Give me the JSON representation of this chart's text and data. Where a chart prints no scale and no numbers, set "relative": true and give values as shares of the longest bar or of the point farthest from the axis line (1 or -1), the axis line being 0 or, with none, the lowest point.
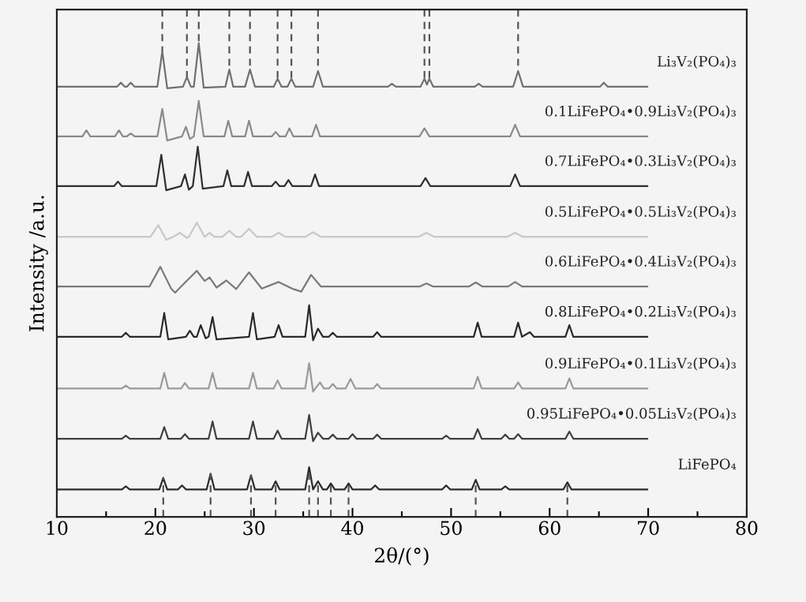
{
  "chart_data": {
    "type": "line",
    "relative": true,
    "xlabel": "2θ/(°)",
    "ylabel": "Intensity /a.u.",
    "xlim": [
      10,
      80
    ],
    "xticks": [
      10,
      20,
      30,
      40,
      50,
      60,
      70,
      80
    ],
    "grid": false,
    "legend": false,
    "marker": "none",
    "line_style": "solid",
    "series": [
      {
        "name": "Li₃V₂(PO₄)₃",
        "color": "#707070",
        "x": [
          10,
          16.1,
          16.5,
          16.9,
          17.1,
          17.5,
          17.9,
          20.2,
          20.7,
          21.2,
          22.8,
          23.2,
          23.6,
          23.9,
          24.4,
          24.9,
          27.1,
          27.5,
          27.9,
          29.1,
          29.6,
          30.1,
          32.0,
          32.4,
          32.8,
          33.4,
          33.8,
          34.2,
          36.0,
          36.5,
          37.0,
          43.6,
          44.0,
          44.4,
          46.9,
          47.3,
          47.55,
          47.8,
          48.2,
          52.4,
          52.8,
          53.2,
          56.3,
          56.8,
          57.3,
          65.1,
          65.5,
          65.9,
          70
        ],
        "values": [
          0.848,
          0.848,
          0.856,
          0.848,
          0.848,
          0.856,
          0.848,
          0.848,
          0.918,
          0.845,
          0.848,
          0.867,
          0.848,
          0.848,
          0.934,
          0.846,
          0.848,
          0.882,
          0.848,
          0.848,
          0.882,
          0.848,
          0.848,
          0.864,
          0.848,
          0.848,
          0.864,
          0.848,
          0.848,
          0.879,
          0.848,
          0.848,
          0.854,
          0.848,
          0.848,
          0.864,
          0.852,
          0.864,
          0.848,
          0.848,
          0.854,
          0.848,
          0.848,
          0.879,
          0.848,
          0.848,
          0.856,
          0.848,
          0.848
        ]
      },
      {
        "name": "0.1LiFePO₄•0.9Li₃V₂(PO₄)₃",
        "color": "#8a8a8a",
        "x": [
          10,
          12.6,
          13.0,
          13.4,
          15.9,
          16.3,
          16.7,
          17.1,
          17.5,
          17.9,
          20.2,
          20.7,
          21.2,
          22.7,
          23.1,
          23.5,
          23.9,
          24.4,
          24.9,
          27.0,
          27.4,
          27.8,
          29.1,
          29.5,
          29.9,
          31.8,
          32.2,
          32.6,
          33.2,
          33.6,
          34.0,
          35.9,
          36.3,
          36.7,
          46.8,
          47.3,
          47.8,
          56.0,
          56.5,
          57.0,
          70
        ],
        "values": [
          0.75,
          0.75,
          0.762,
          0.75,
          0.75,
          0.762,
          0.75,
          0.75,
          0.756,
          0.75,
          0.75,
          0.804,
          0.742,
          0.75,
          0.769,
          0.745,
          0.75,
          0.82,
          0.75,
          0.75,
          0.781,
          0.75,
          0.75,
          0.781,
          0.75,
          0.75,
          0.759,
          0.75,
          0.75,
          0.766,
          0.75,
          0.75,
          0.773,
          0.75,
          0.75,
          0.766,
          0.75,
          0.75,
          0.773,
          0.75,
          0.75
        ]
      },
      {
        "name": "0.7LiFePO₄•0.3Li₃V₂(PO₄)₃",
        "color": "#303030",
        "x": [
          10,
          15.8,
          16.2,
          16.6,
          20.1,
          20.6,
          21.1,
          22.6,
          23.0,
          23.4,
          23.8,
          24.3,
          24.8,
          26.9,
          27.3,
          27.7,
          29.0,
          29.4,
          29.8,
          31.8,
          32.2,
          32.6,
          33.1,
          33.5,
          33.9,
          35.8,
          36.2,
          36.6,
          46.9,
          47.4,
          47.9,
          56.0,
          56.5,
          57.0,
          70
        ],
        "values": [
          0.652,
          0.652,
          0.661,
          0.652,
          0.652,
          0.714,
          0.644,
          0.652,
          0.675,
          0.645,
          0.652,
          0.73,
          0.647,
          0.652,
          0.683,
          0.652,
          0.652,
          0.68,
          0.652,
          0.652,
          0.661,
          0.652,
          0.652,
          0.664,
          0.652,
          0.652,
          0.675,
          0.652,
          0.652,
          0.668,
          0.652,
          0.652,
          0.675,
          0.652,
          0.652
        ]
      },
      {
        "name": "0.5LiFePO₄•0.5Li₃V₂(PO₄)₃",
        "color": "#c8c8c8",
        "x": [
          10,
          19.5,
          20.3,
          21.1,
          21.8,
          22.5,
          23.2,
          23.4,
          24.2,
          25.0,
          25.5,
          26.0,
          26.8,
          27.5,
          28.2,
          28.7,
          29.5,
          30.3,
          31.8,
          32.5,
          33.2,
          35.2,
          36.0,
          36.8,
          46.7,
          47.5,
          48.3,
          55.7,
          56.5,
          57.3,
          70
        ],
        "values": [
          0.552,
          0.552,
          0.575,
          0.546,
          0.552,
          0.56,
          0.55,
          0.552,
          0.58,
          0.552,
          0.56,
          0.552,
          0.552,
          0.564,
          0.552,
          0.552,
          0.568,
          0.552,
          0.552,
          0.56,
          0.552,
          0.552,
          0.561,
          0.552,
          0.552,
          0.56,
          0.552,
          0.552,
          0.56,
          0.552,
          0.552
        ]
      },
      {
        "name": "0.6LiFePO₄•0.4Li₃V₂(PO₄)₃",
        "color": "#7a7a7a",
        "x": [
          10,
          19.4,
          20.5,
          21.6,
          22.0,
          22.6,
          24.2,
          25.0,
          25.5,
          26.2,
          27.2,
          28.2,
          29.5,
          30.8,
          32.5,
          34.0,
          34.8,
          35.8,
          36.8,
          46.8,
          47.5,
          48.2,
          51.8,
          52.5,
          53.2,
          55.8,
          56.5,
          57.2,
          70
        ],
        "values": [
          0.454,
          0.454,
          0.493,
          0.45,
          0.442,
          0.454,
          0.485,
          0.465,
          0.472,
          0.452,
          0.466,
          0.449,
          0.482,
          0.45,
          0.463,
          0.449,
          0.444,
          0.477,
          0.454,
          0.454,
          0.46,
          0.454,
          0.454,
          0.462,
          0.454,
          0.454,
          0.463,
          0.454,
          0.454
        ]
      },
      {
        "name": "0.8LiFePO₄•0.2Li₃V₂(PO₄)₃",
        "color": "#2a2a2a",
        "x": [
          10,
          16.6,
          17.0,
          17.4,
          20.5,
          20.9,
          21.3,
          23.1,
          23.5,
          23.9,
          24.2,
          24.6,
          25.1,
          25.4,
          25.8,
          26.2,
          29.5,
          29.9,
          30.3,
          32.1,
          32.5,
          32.9,
          35.2,
          35.6,
          36.0,
          36.5,
          37.0,
          37.6,
          38.0,
          38.4,
          42.1,
          42.5,
          42.9,
          52.3,
          52.7,
          53.1,
          56.4,
          56.8,
          57.2,
          58.0,
          58.4,
          61.6,
          62.0,
          62.4,
          70
        ],
        "values": [
          0.355,
          0.355,
          0.363,
          0.355,
          0.355,
          0.402,
          0.35,
          0.355,
          0.367,
          0.355,
          0.355,
          0.378,
          0.352,
          0.355,
          0.394,
          0.35,
          0.355,
          0.402,
          0.35,
          0.355,
          0.378,
          0.355,
          0.355,
          0.417,
          0.348,
          0.371,
          0.355,
          0.355,
          0.363,
          0.355,
          0.355,
          0.364,
          0.355,
          0.355,
          0.383,
          0.355,
          0.355,
          0.383,
          0.355,
          0.364,
          0.355,
          0.355,
          0.378,
          0.355,
          0.355
        ]
      },
      {
        "name": "0.9LiFePO₄•0.1Li₃V₂(PO₄)₃",
        "color": "#9a9a9a",
        "x": [
          10,
          16.6,
          17.0,
          17.4,
          20.5,
          20.9,
          21.3,
          22.6,
          23.0,
          23.4,
          25.4,
          25.8,
          26.2,
          29.5,
          29.9,
          30.3,
          32.0,
          32.4,
          32.8,
          35.2,
          35.6,
          36.0,
          36.7,
          37.1,
          37.6,
          38.0,
          38.4,
          39.3,
          39.8,
          40.3,
          42.1,
          42.5,
          42.9,
          52.3,
          52.7,
          53.1,
          56.4,
          56.8,
          57.2,
          61.6,
          62.0,
          62.4,
          70
        ],
        "values": [
          0.253,
          0.253,
          0.259,
          0.253,
          0.253,
          0.284,
          0.253,
          0.253,
          0.264,
          0.253,
          0.253,
          0.284,
          0.253,
          0.253,
          0.284,
          0.253,
          0.253,
          0.269,
          0.253,
          0.253,
          0.303,
          0.247,
          0.265,
          0.253,
          0.253,
          0.262,
          0.253,
          0.253,
          0.272,
          0.253,
          0.253,
          0.262,
          0.253,
          0.253,
          0.276,
          0.253,
          0.253,
          0.265,
          0.253,
          0.253,
          0.273,
          0.253,
          0.253
        ]
      },
      {
        "name": "0.95LiFePO₄•0.05Li₃V₂(PO₄)₃",
        "color": "#404040",
        "x": [
          10,
          16.6,
          17.0,
          17.4,
          20.5,
          20.9,
          21.3,
          22.6,
          23.0,
          23.4,
          25.4,
          25.8,
          26.2,
          29.5,
          29.9,
          30.3,
          32.0,
          32.4,
          32.8,
          35.2,
          35.6,
          36.0,
          36.5,
          37.0,
          37.6,
          38.0,
          38.4,
          39.6,
          40.0,
          40.4,
          42.1,
          42.5,
          42.9,
          49.1,
          49.5,
          49.9,
          52.3,
          52.7,
          53.1,
          55.1,
          55.5,
          55.9,
          56.4,
          56.8,
          57.2,
          61.6,
          62.0,
          62.4,
          70
        ],
        "values": [
          0.154,
          0.154,
          0.16,
          0.154,
          0.154,
          0.177,
          0.154,
          0.154,
          0.163,
          0.154,
          0.154,
          0.188,
          0.154,
          0.154,
          0.188,
          0.154,
          0.154,
          0.17,
          0.154,
          0.154,
          0.201,
          0.149,
          0.166,
          0.154,
          0.154,
          0.162,
          0.154,
          0.154,
          0.163,
          0.154,
          0.154,
          0.162,
          0.154,
          0.154,
          0.16,
          0.154,
          0.154,
          0.173,
          0.154,
          0.154,
          0.162,
          0.154,
          0.154,
          0.163,
          0.154,
          0.154,
          0.168,
          0.154,
          0.154
        ]
      },
      {
        "name": "LiFePO₄",
        "color": "#2a2a2a",
        "x": [
          10,
          16.6,
          17.0,
          17.4,
          20.4,
          20.8,
          21.2,
          22.3,
          22.7,
          23.1,
          25.2,
          25.6,
          26.0,
          29.3,
          29.7,
          30.1,
          31.8,
          32.2,
          32.6,
          35.2,
          35.6,
          36.0,
          36.5,
          37.0,
          37.4,
          37.8,
          38.2,
          39.2,
          39.6,
          40.0,
          41.9,
          42.3,
          42.7,
          49.1,
          49.5,
          49.9,
          52.1,
          52.5,
          52.9,
          55.1,
          55.5,
          55.9,
          61.4,
          61.8,
          62.2,
          70
        ],
        "values": [
          0.054,
          0.054,
          0.06,
          0.054,
          0.054,
          0.077,
          0.054,
          0.054,
          0.062,
          0.054,
          0.054,
          0.085,
          0.054,
          0.054,
          0.082,
          0.054,
          0.054,
          0.07,
          0.054,
          0.054,
          0.098,
          0.054,
          0.07,
          0.054,
          0.054,
          0.066,
          0.054,
          0.054,
          0.066,
          0.054,
          0.054,
          0.062,
          0.054,
          0.054,
          0.062,
          0.054,
          0.054,
          0.073,
          0.054,
          0.054,
          0.06,
          0.054,
          0.054,
          0.068,
          0.054,
          0.054
        ]
      },
      {
        "color": "#555555",
        "line_style": "dashed",
        "x": [
          20.7,
          20.7
        ],
        "values": [
          1.0,
          0.918
        ]
      },
      {
        "color": "#555555",
        "line_style": "dashed",
        "x": [
          23.2,
          23.2
        ],
        "values": [
          1.0,
          0.867
        ]
      },
      {
        "color": "#555555",
        "line_style": "dashed",
        "x": [
          24.4,
          24.4
        ],
        "values": [
          1.0,
          0.934
        ]
      },
      {
        "color": "#555555",
        "line_style": "dashed",
        "x": [
          27.5,
          27.5
        ],
        "values": [
          1.0,
          0.882
        ]
      },
      {
        "color": "#555555",
        "line_style": "dashed",
        "x": [
          29.6,
          29.6
        ],
        "values": [
          1.0,
          0.882
        ]
      },
      {
        "color": "#555555",
        "line_style": "dashed",
        "x": [
          32.4,
          32.4
        ],
        "values": [
          1.0,
          0.864
        ]
      },
      {
        "color": "#555555",
        "line_style": "dashed",
        "x": [
          33.8,
          33.8
        ],
        "values": [
          1.0,
          0.864
        ]
      },
      {
        "color": "#555555",
        "line_style": "dashed",
        "x": [
          36.5,
          36.5
        ],
        "values": [
          1.0,
          0.879
        ]
      },
      {
        "color": "#555555",
        "line_style": "dashed",
        "x": [
          47.3,
          47.3
        ],
        "values": [
          1.0,
          0.864
        ]
      },
      {
        "color": "#555555",
        "line_style": "dashed",
        "x": [
          47.8,
          47.8
        ],
        "values": [
          1.0,
          0.864
        ]
      },
      {
        "color": "#555555",
        "line_style": "dashed",
        "x": [
          56.8,
          56.8
        ],
        "values": [
          1.0,
          0.879
        ]
      },
      {
        "color": "#555555",
        "line_style": "dashed",
        "x": [
          20.8,
          20.8
        ],
        "values": [
          0,
          0.077
        ]
      },
      {
        "color": "#555555",
        "line_style": "dashed",
        "x": [
          25.6,
          25.6
        ],
        "values": [
          0,
          0.085
        ]
      },
      {
        "color": "#555555",
        "line_style": "dashed",
        "x": [
          29.7,
          29.7
        ],
        "values": [
          0,
          0.082
        ]
      },
      {
        "color": "#555555",
        "line_style": "dashed",
        "x": [
          32.2,
          32.2
        ],
        "values": [
          0,
          0.07
        ]
      },
      {
        "color": "#555555",
        "line_style": "dashed",
        "x": [
          35.6,
          35.6
        ],
        "values": [
          0,
          0.098
        ]
      },
      {
        "color": "#555555",
        "line_style": "dashed",
        "x": [
          36.5,
          36.5
        ],
        "values": [
          0,
          0.07
        ]
      },
      {
        "color": "#555555",
        "line_style": "dashed",
        "x": [
          37.8,
          37.8
        ],
        "values": [
          0,
          0.066
        ]
      },
      {
        "color": "#555555",
        "line_style": "dashed",
        "x": [
          39.6,
          39.6
        ],
        "values": [
          0,
          0.066
        ]
      },
      {
        "color": "#555555",
        "line_style": "dashed",
        "x": [
          52.5,
          52.5
        ],
        "values": [
          0,
          0.073
        ]
      },
      {
        "color": "#555555",
        "line_style": "dashed",
        "x": [
          61.8,
          61.8
        ],
        "values": [
          0,
          0.068
        ]
      }
    ]
  }
}
